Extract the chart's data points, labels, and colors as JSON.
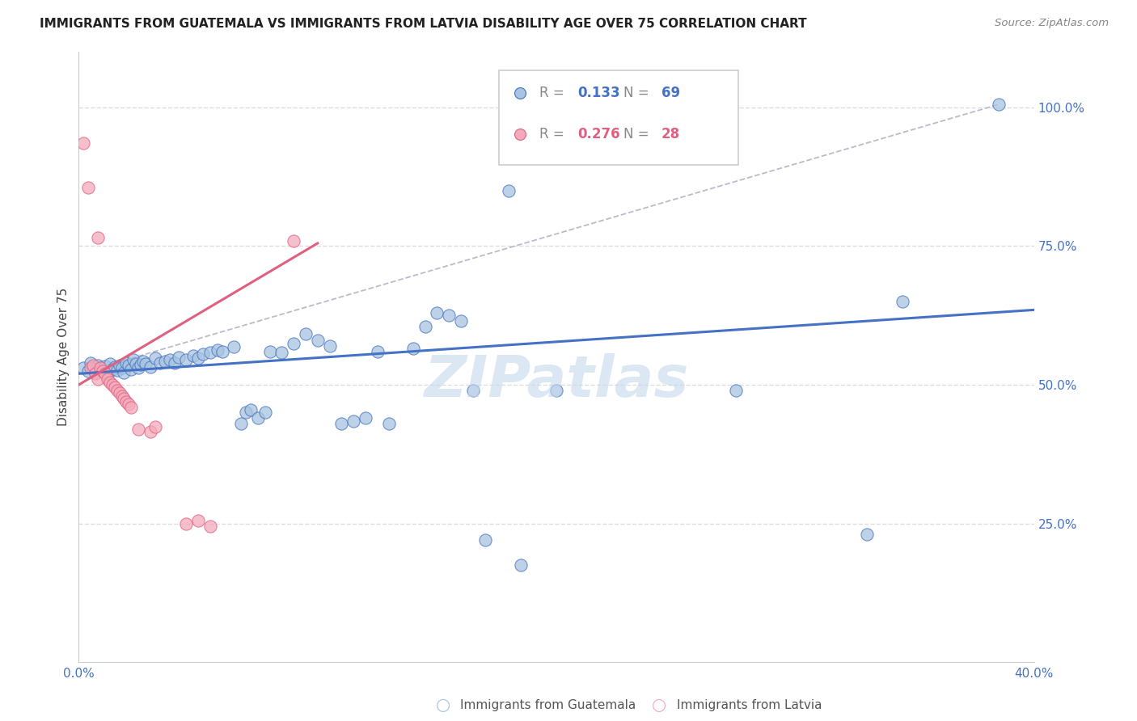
{
  "title": "IMMIGRANTS FROM GUATEMALA VS IMMIGRANTS FROM LATVIA DISABILITY AGE OVER 75 CORRELATION CHART",
  "source": "Source: ZipAtlas.com",
  "ylabel": "Disability Age Over 75",
  "x_min": 0.0,
  "x_max": 0.4,
  "y_min": 0.0,
  "y_max": 1.1,
  "x_ticks": [
    0.0,
    0.08,
    0.16,
    0.24,
    0.32,
    0.4
  ],
  "x_tick_labels": [
    "0.0%",
    "",
    "",
    "",
    "",
    "40.0%"
  ],
  "y_ticks_right": [
    0.25,
    0.5,
    0.75,
    1.0
  ],
  "y_tick_labels_right": [
    "25.0%",
    "50.0%",
    "75.0%",
    "100.0%"
  ],
  "legend_blue_r_val": "0.133",
  "legend_blue_n_val": "69",
  "legend_pink_r_val": "0.276",
  "legend_pink_n_val": "28",
  "blue_color": "#A8C4E0",
  "pink_color": "#F4AABB",
  "blue_line_color": "#4472C4",
  "pink_line_color": "#E06080",
  "blue_scatter": [
    [
      0.002,
      0.53
    ],
    [
      0.004,
      0.525
    ],
    [
      0.005,
      0.54
    ],
    [
      0.006,
      0.528
    ],
    [
      0.007,
      0.522
    ],
    [
      0.008,
      0.535
    ],
    [
      0.009,
      0.53
    ],
    [
      0.01,
      0.525
    ],
    [
      0.011,
      0.533
    ],
    [
      0.012,
      0.52
    ],
    [
      0.013,
      0.538
    ],
    [
      0.014,
      0.528
    ],
    [
      0.015,
      0.532
    ],
    [
      0.016,
      0.527
    ],
    [
      0.017,
      0.535
    ],
    [
      0.018,
      0.53
    ],
    [
      0.019,
      0.522
    ],
    [
      0.02,
      0.54
    ],
    [
      0.021,
      0.535
    ],
    [
      0.022,
      0.528
    ],
    [
      0.023,
      0.545
    ],
    [
      0.024,
      0.538
    ],
    [
      0.025,
      0.53
    ],
    [
      0.026,
      0.536
    ],
    [
      0.027,
      0.542
    ],
    [
      0.028,
      0.538
    ],
    [
      0.03,
      0.532
    ],
    [
      0.032,
      0.548
    ],
    [
      0.034,
      0.54
    ],
    [
      0.036,
      0.542
    ],
    [
      0.038,
      0.545
    ],
    [
      0.04,
      0.54
    ],
    [
      0.042,
      0.55
    ],
    [
      0.045,
      0.545
    ],
    [
      0.048,
      0.552
    ],
    [
      0.05,
      0.548
    ],
    [
      0.052,
      0.555
    ],
    [
      0.055,
      0.558
    ],
    [
      0.058,
      0.562
    ],
    [
      0.06,
      0.56
    ],
    [
      0.065,
      0.568
    ],
    [
      0.068,
      0.43
    ],
    [
      0.07,
      0.45
    ],
    [
      0.072,
      0.455
    ],
    [
      0.075,
      0.44
    ],
    [
      0.078,
      0.45
    ],
    [
      0.08,
      0.56
    ],
    [
      0.085,
      0.558
    ],
    [
      0.09,
      0.575
    ],
    [
      0.095,
      0.592
    ],
    [
      0.1,
      0.58
    ],
    [
      0.105,
      0.57
    ],
    [
      0.11,
      0.43
    ],
    [
      0.115,
      0.435
    ],
    [
      0.12,
      0.44
    ],
    [
      0.125,
      0.56
    ],
    [
      0.13,
      0.43
    ],
    [
      0.14,
      0.565
    ],
    [
      0.145,
      0.605
    ],
    [
      0.15,
      0.63
    ],
    [
      0.155,
      0.625
    ],
    [
      0.16,
      0.615
    ],
    [
      0.165,
      0.49
    ],
    [
      0.17,
      0.22
    ],
    [
      0.18,
      0.85
    ],
    [
      0.185,
      0.175
    ],
    [
      0.2,
      0.49
    ],
    [
      0.275,
      0.49
    ],
    [
      0.33,
      0.23
    ],
    [
      0.345,
      0.65
    ],
    [
      0.385,
      1.005
    ]
  ],
  "pink_scatter": [
    [
      0.002,
      0.935
    ],
    [
      0.004,
      0.855
    ],
    [
      0.005,
      0.53
    ],
    [
      0.006,
      0.535
    ],
    [
      0.007,
      0.52
    ],
    [
      0.008,
      0.51
    ],
    [
      0.009,
      0.53
    ],
    [
      0.01,
      0.525
    ],
    [
      0.011,
      0.52
    ],
    [
      0.012,
      0.51
    ],
    [
      0.013,
      0.505
    ],
    [
      0.014,
      0.5
    ],
    [
      0.015,
      0.495
    ],
    [
      0.016,
      0.49
    ],
    [
      0.017,
      0.485
    ],
    [
      0.018,
      0.48
    ],
    [
      0.019,
      0.475
    ],
    [
      0.02,
      0.47
    ],
    [
      0.021,
      0.465
    ],
    [
      0.022,
      0.46
    ],
    [
      0.008,
      0.765
    ],
    [
      0.025,
      0.42
    ],
    [
      0.03,
      0.415
    ],
    [
      0.032,
      0.425
    ],
    [
      0.045,
      0.25
    ],
    [
      0.05,
      0.255
    ],
    [
      0.055,
      0.245
    ],
    [
      0.09,
      0.76
    ]
  ],
  "blue_trendline_x": [
    0.0,
    0.4
  ],
  "blue_trendline_y": [
    0.52,
    0.635
  ],
  "pink_trendline_x": [
    0.0,
    0.1
  ],
  "pink_trendline_y": [
    0.5,
    0.755
  ],
  "dashed_line_x": [
    0.0,
    0.385
  ],
  "dashed_line_y": [
    0.52,
    1.005
  ],
  "watermark": "ZIPatlas",
  "watermark_color": "#C5D8EE",
  "background_color": "#FFFFFF",
  "grid_color": "#DDDDDD",
  "title_fontsize": 11,
  "label_fontsize": 11,
  "tick_fontsize": 11,
  "legend_fontsize": 12
}
